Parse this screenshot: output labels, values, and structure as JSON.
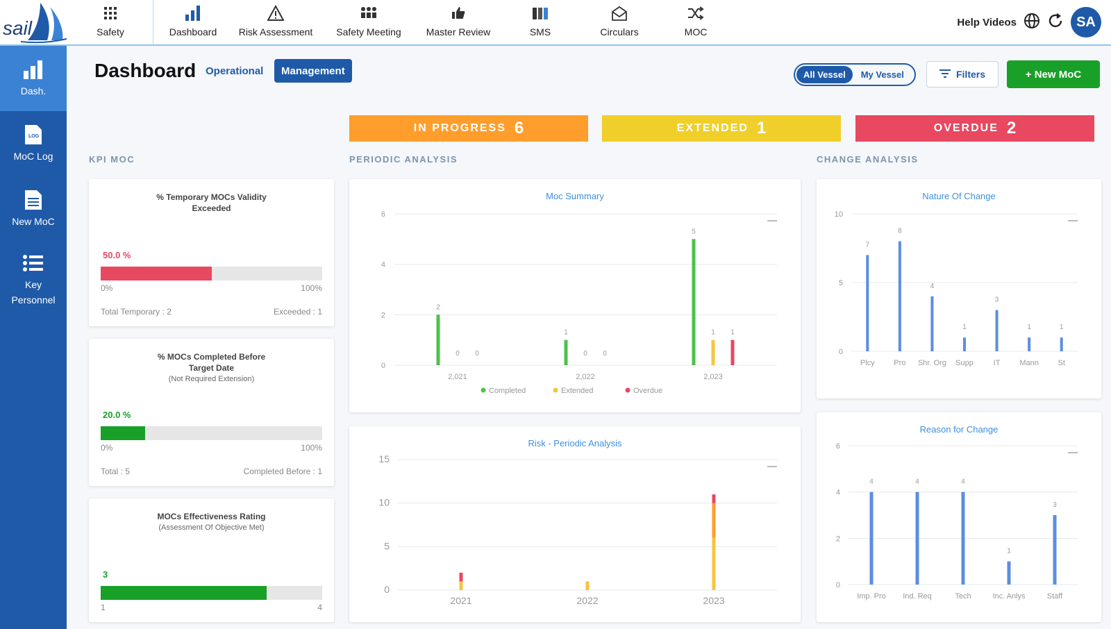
{
  "nav": {
    "items": [
      {
        "label": "Safety",
        "icon": "grid-icon"
      },
      {
        "label": "Dashboard",
        "icon": "bar-chart-icon"
      },
      {
        "label": "Risk Assessment",
        "icon": "warning-icon"
      },
      {
        "label": "Safety Meeting",
        "icon": "people-icon"
      },
      {
        "label": "Master Review",
        "icon": "thumbs-up-icon"
      },
      {
        "label": "SMS",
        "icon": "binders-icon"
      },
      {
        "label": "Circulars",
        "icon": "envelope-icon"
      },
      {
        "label": "MOC",
        "icon": "shuffle-icon"
      }
    ],
    "help_label": "Help Videos",
    "avatar": "SA",
    "logo_text": "sail"
  },
  "sidebar": {
    "items": [
      {
        "label": "Dash.",
        "icon": "bar-chart-icon"
      },
      {
        "label": "MoC Log",
        "icon": "log-file-icon"
      },
      {
        "label": "New MoC",
        "icon": "document-icon"
      },
      {
        "label": "Key",
        "label2": "Personnel",
        "icon": "list-icon"
      }
    ]
  },
  "header": {
    "title": "Dashboard",
    "tab_operational": "Operational",
    "tab_management": "Management",
    "vessel_all": "All Vessel",
    "vessel_my": "My Vessel",
    "filters": "Filters",
    "new_moc": "+ New MoC"
  },
  "status": {
    "in_progress": {
      "label": "IN PROGRESS",
      "count": "6"
    },
    "extended": {
      "label": "EXTENDED",
      "count": "1"
    },
    "overdue": {
      "label": "OVERDUE",
      "count": "2"
    }
  },
  "sections": {
    "kpi": "KPI MOC",
    "periodic": "PERIODIC ANALYSIS",
    "change": "CHANGE ANALYSIS"
  },
  "kpis": [
    {
      "title": "% Temporary MOCs Validity",
      "title2": "Exceeded",
      "sub": "",
      "value_text": "50.0 %",
      "fraction": 0.5,
      "color": "#e84860",
      "lo": "0%",
      "hi": "100%",
      "foot_left": "Total Temporary : 2",
      "foot_right": "Exceeded : 1"
    },
    {
      "title": "% MOCs Completed Before",
      "title2": "Target Date",
      "sub": "(Not Required Extension)",
      "value_text": "20.0 %",
      "fraction": 0.2,
      "color": "#19a028",
      "lo": "0%",
      "hi": "100%",
      "foot_left": "Total : 5",
      "foot_right": "Completed Before : 1"
    },
    {
      "title": "MOCs Effectiveness Rating",
      "title2": "",
      "sub": "(Assessment Of Objective Met)",
      "value_text": "3",
      "fraction": 0.75,
      "color": "#19a028",
      "lo": "1",
      "hi": "4",
      "foot_left": "",
      "foot_right": ""
    }
  ],
  "chart_data": [
    {
      "type": "bar",
      "title": "Moc Summary",
      "categories": [
        "2,021",
        "2,022",
        "2,023"
      ],
      "ylim": [
        0,
        6
      ],
      "yticks": [
        0,
        2,
        4,
        6
      ],
      "series": [
        {
          "name": "Completed",
          "color": "#4cc24c",
          "values": [
            2,
            1,
            5
          ]
        },
        {
          "name": "Extended",
          "color": "#f5c542",
          "values": [
            0,
            0,
            1
          ]
        },
        {
          "name": "Overdue",
          "color": "#e84860",
          "values": [
            0,
            0,
            1
          ]
        }
      ]
    },
    {
      "type": "bar",
      "title": "Risk - Periodic Analysis",
      "categories": [
        "2021",
        "2022",
        "2023"
      ],
      "ylim": [
        0,
        15
      ],
      "yticks": [
        0,
        5,
        10,
        15
      ],
      "stacked": true,
      "series": [
        {
          "color": "#f5c542",
          "values": [
            1,
            1,
            6
          ]
        },
        {
          "color": "#ff9e2c",
          "values": [
            0,
            0,
            4
          ]
        },
        {
          "color": "#e84860",
          "values": [
            1,
            0,
            1
          ]
        }
      ]
    },
    {
      "type": "bar",
      "title": "Nature Of Change",
      "categories": [
        "Plcy",
        "Pro",
        "Shr. Org",
        "Supp",
        "IT",
        "Mann",
        "St"
      ],
      "values": [
        7,
        8,
        4,
        1,
        3,
        1,
        1
      ],
      "ylim": [
        0,
        10
      ],
      "yticks": [
        0,
        5,
        10
      ],
      "color": "#5b8ee0"
    },
    {
      "type": "bar",
      "title": "Reason for Change",
      "categories": [
        "Imp. Pro",
        "Ind. Req",
        "Tech",
        "Inc. Anlys",
        "Staff"
      ],
      "values": [
        4,
        4,
        4,
        1,
        3
      ],
      "ylim": [
        0,
        6
      ],
      "yticks": [
        0,
        2,
        4,
        6
      ],
      "color": "#5b8ee0"
    }
  ]
}
